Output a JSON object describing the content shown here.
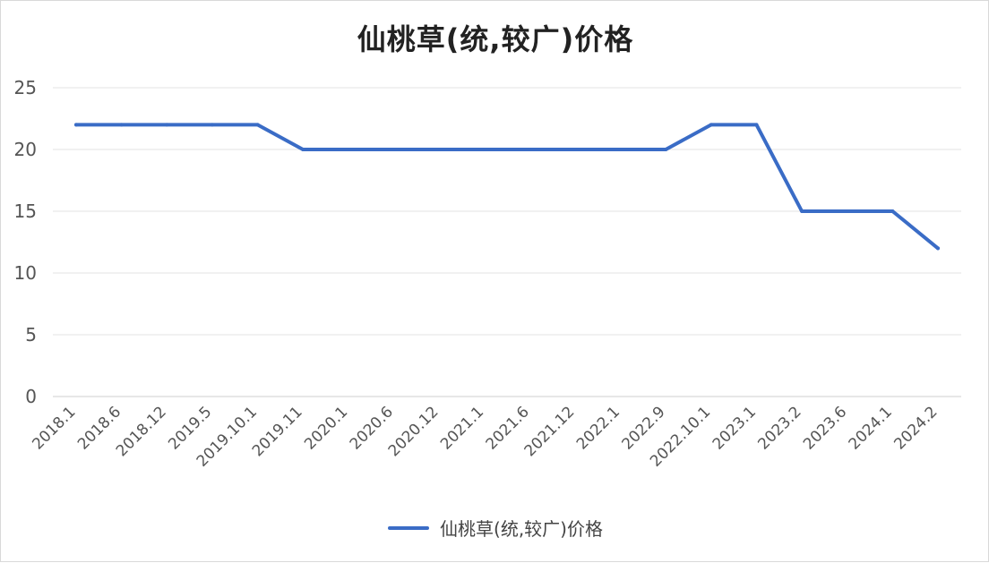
{
  "chart_data": {
    "type": "line",
    "title": "仙桃草(统,较广)价格",
    "categories": [
      "2018.1",
      "2018.6",
      "2018.12",
      "2019.5",
      "2019.10.1",
      "2019.11",
      "2020.1",
      "2020.6",
      "2020.12",
      "2021.1",
      "2021.6",
      "2021.12",
      "2022.1",
      "2022.9",
      "2022.10.1",
      "2023.1",
      "2023.2",
      "2023.6",
      "2024.1",
      "2024.2"
    ],
    "series": [
      {
        "name": "仙桃草(统,较广)价格",
        "color": "#3a6cc6",
        "values": [
          22,
          22,
          22,
          22,
          22,
          20,
          20,
          20,
          20,
          20,
          20,
          20,
          20,
          20,
          22,
          22,
          15,
          15,
          15,
          12
        ]
      }
    ],
    "yticks": [
      "0",
      "5",
      "10",
      "15",
      "20",
      "25"
    ],
    "ylim": [
      0,
      25
    ],
    "grid": true,
    "legend": "bottom"
  }
}
